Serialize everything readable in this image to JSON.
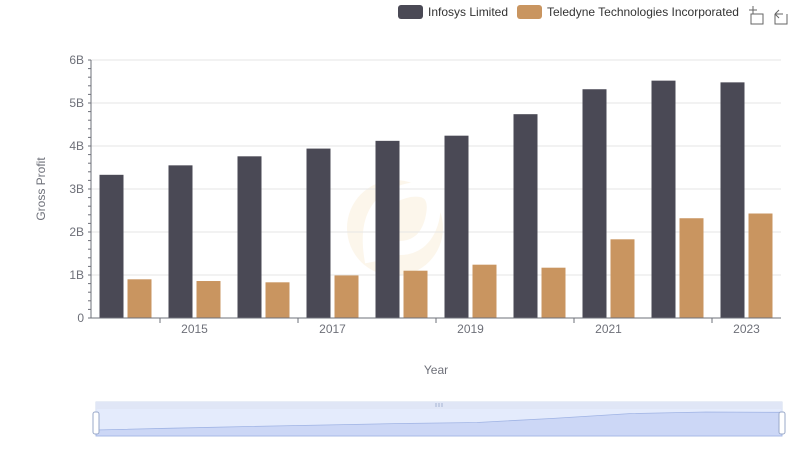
{
  "chart_data": {
    "type": "bar",
    "xlabel": "Year",
    "ylabel": "Gross Profit",
    "ylim": [
      0,
      6000000000
    ],
    "yticks": [
      {
        "value": 0,
        "label": "0"
      },
      {
        "value": 1000000000,
        "label": "1B"
      },
      {
        "value": 2000000000,
        "label": "2B"
      },
      {
        "value": 3000000000,
        "label": "3B"
      },
      {
        "value": 4000000000,
        "label": "4B"
      },
      {
        "value": 5000000000,
        "label": "5B"
      },
      {
        "value": 6000000000,
        "label": "6B"
      }
    ],
    "categories": [
      "2014",
      "2015",
      "2016",
      "2017",
      "2018",
      "2019",
      "2020",
      "2021",
      "2022",
      "2023"
    ],
    "xtick_labels": [
      "2015",
      "2017",
      "2019",
      "2021",
      "2023"
    ],
    "grid": true,
    "legend_position": "top-right",
    "series": [
      {
        "name": "Infosys Limited",
        "color": "#4a4955",
        "values": [
          3330000000,
          3550000000,
          3760000000,
          3940000000,
          4120000000,
          4240000000,
          4740000000,
          5320000000,
          5520000000,
          5480000000
        ]
      },
      {
        "name": "Teledyne Technologies Incorporated",
        "color": "#c99560",
        "values": [
          900000000,
          860000000,
          830000000,
          990000000,
          1100000000,
          1240000000,
          1170000000,
          1830000000,
          2320000000,
          2430000000
        ]
      }
    ]
  },
  "toolbox": {
    "zoom_icon": "zoom-icon",
    "restore_icon": "restore-icon"
  }
}
